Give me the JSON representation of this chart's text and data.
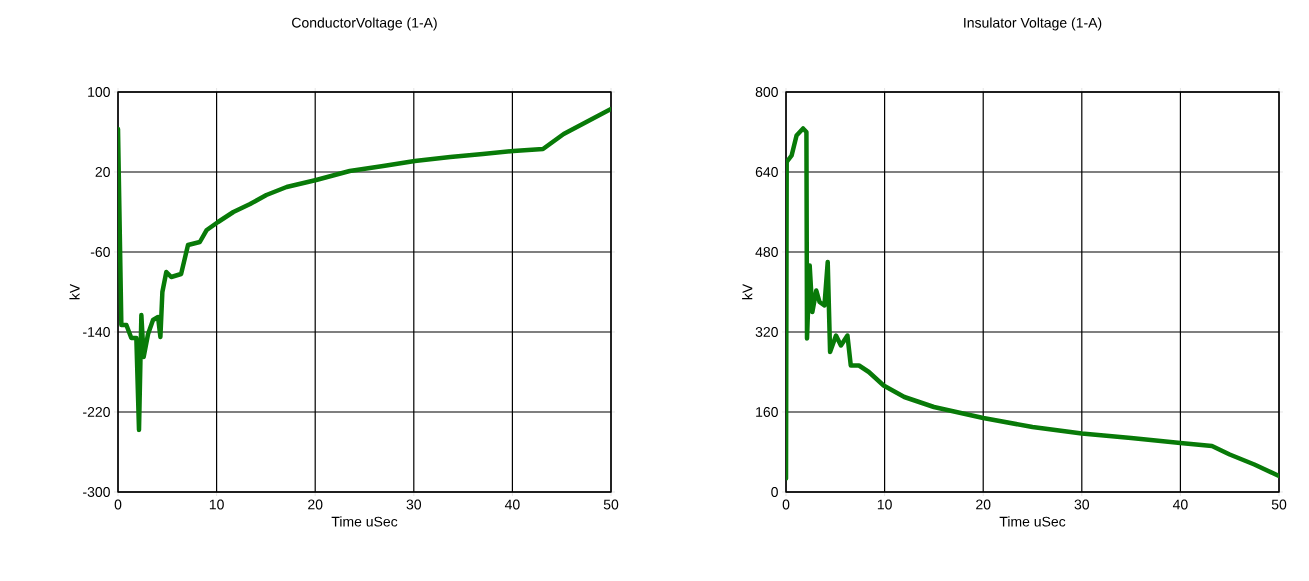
{
  "chart_data": [
    {
      "type": "line",
      "title": "ConductorVoltage (1-A)",
      "xlabel": "Time uSec",
      "ylabel": "kV",
      "xlim": [
        0,
        50
      ],
      "xticks": [
        0,
        10,
        20,
        30,
        40,
        50
      ],
      "ylim": [
        -300,
        100
      ],
      "yticks": [
        -300,
        -220,
        -140,
        -60,
        20,
        100
      ],
      "grid": true,
      "series": [
        {
          "color": "#087a08",
          "x": [
            0,
            0.34,
            0.85,
            1.35,
            1.86,
            2.13,
            2.37,
            2.6,
            3.05,
            3.55,
            4.06,
            4.3,
            4.5,
            4.9,
            5.4,
            6.4,
            7.1,
            8.3,
            9.0,
            10.15,
            11.7,
            13.4,
            15.05,
            17.1,
            20.1,
            23.5,
            26.9,
            30.1,
            33.7,
            37.0,
            40.1,
            43.1,
            45.2,
            47.5,
            50
          ],
          "values": [
            63,
            -133,
            -133,
            -146,
            -146,
            -238,
            -123,
            -165,
            -142,
            -128,
            -125,
            -145,
            -100,
            -80,
            -85,
            -82,
            -53,
            -50,
            -38,
            -30,
            -20,
            -12,
            -3,
            5,
            12,
            21,
            26,
            31,
            35,
            38,
            41,
            43,
            58,
            70,
            83
          ]
        }
      ]
    },
    {
      "type": "line",
      "title": "Insulator Voltage (1-A)",
      "xlabel": "Time uSec",
      "ylabel": "kV",
      "xlim": [
        0,
        50
      ],
      "xticks": [
        0,
        10,
        20,
        30,
        40,
        50
      ],
      "ylim": [
        0,
        800
      ],
      "yticks": [
        0,
        160,
        320,
        480,
        640,
        800
      ],
      "grid": true,
      "series": [
        {
          "color": "#087a08",
          "x": [
            0,
            0.07,
            0.57,
            1.07,
            1.73,
            2.07,
            2.13,
            2.4,
            2.67,
            3.07,
            3.4,
            3.9,
            4.23,
            4.47,
            5.07,
            5.57,
            6.23,
            6.57,
            7.4,
            8.4,
            9.9,
            12,
            15,
            20,
            25,
            30,
            35,
            40,
            43.2,
            45,
            47.5,
            50
          ],
          "values": [
            27,
            660,
            673,
            713,
            727,
            720,
            307,
            453,
            360,
            403,
            380,
            373,
            460,
            280,
            313,
            293,
            313,
            253,
            253,
            240,
            213,
            190,
            170,
            148,
            130,
            117,
            108,
            98,
            92,
            75,
            55,
            32
          ]
        }
      ]
    }
  ]
}
